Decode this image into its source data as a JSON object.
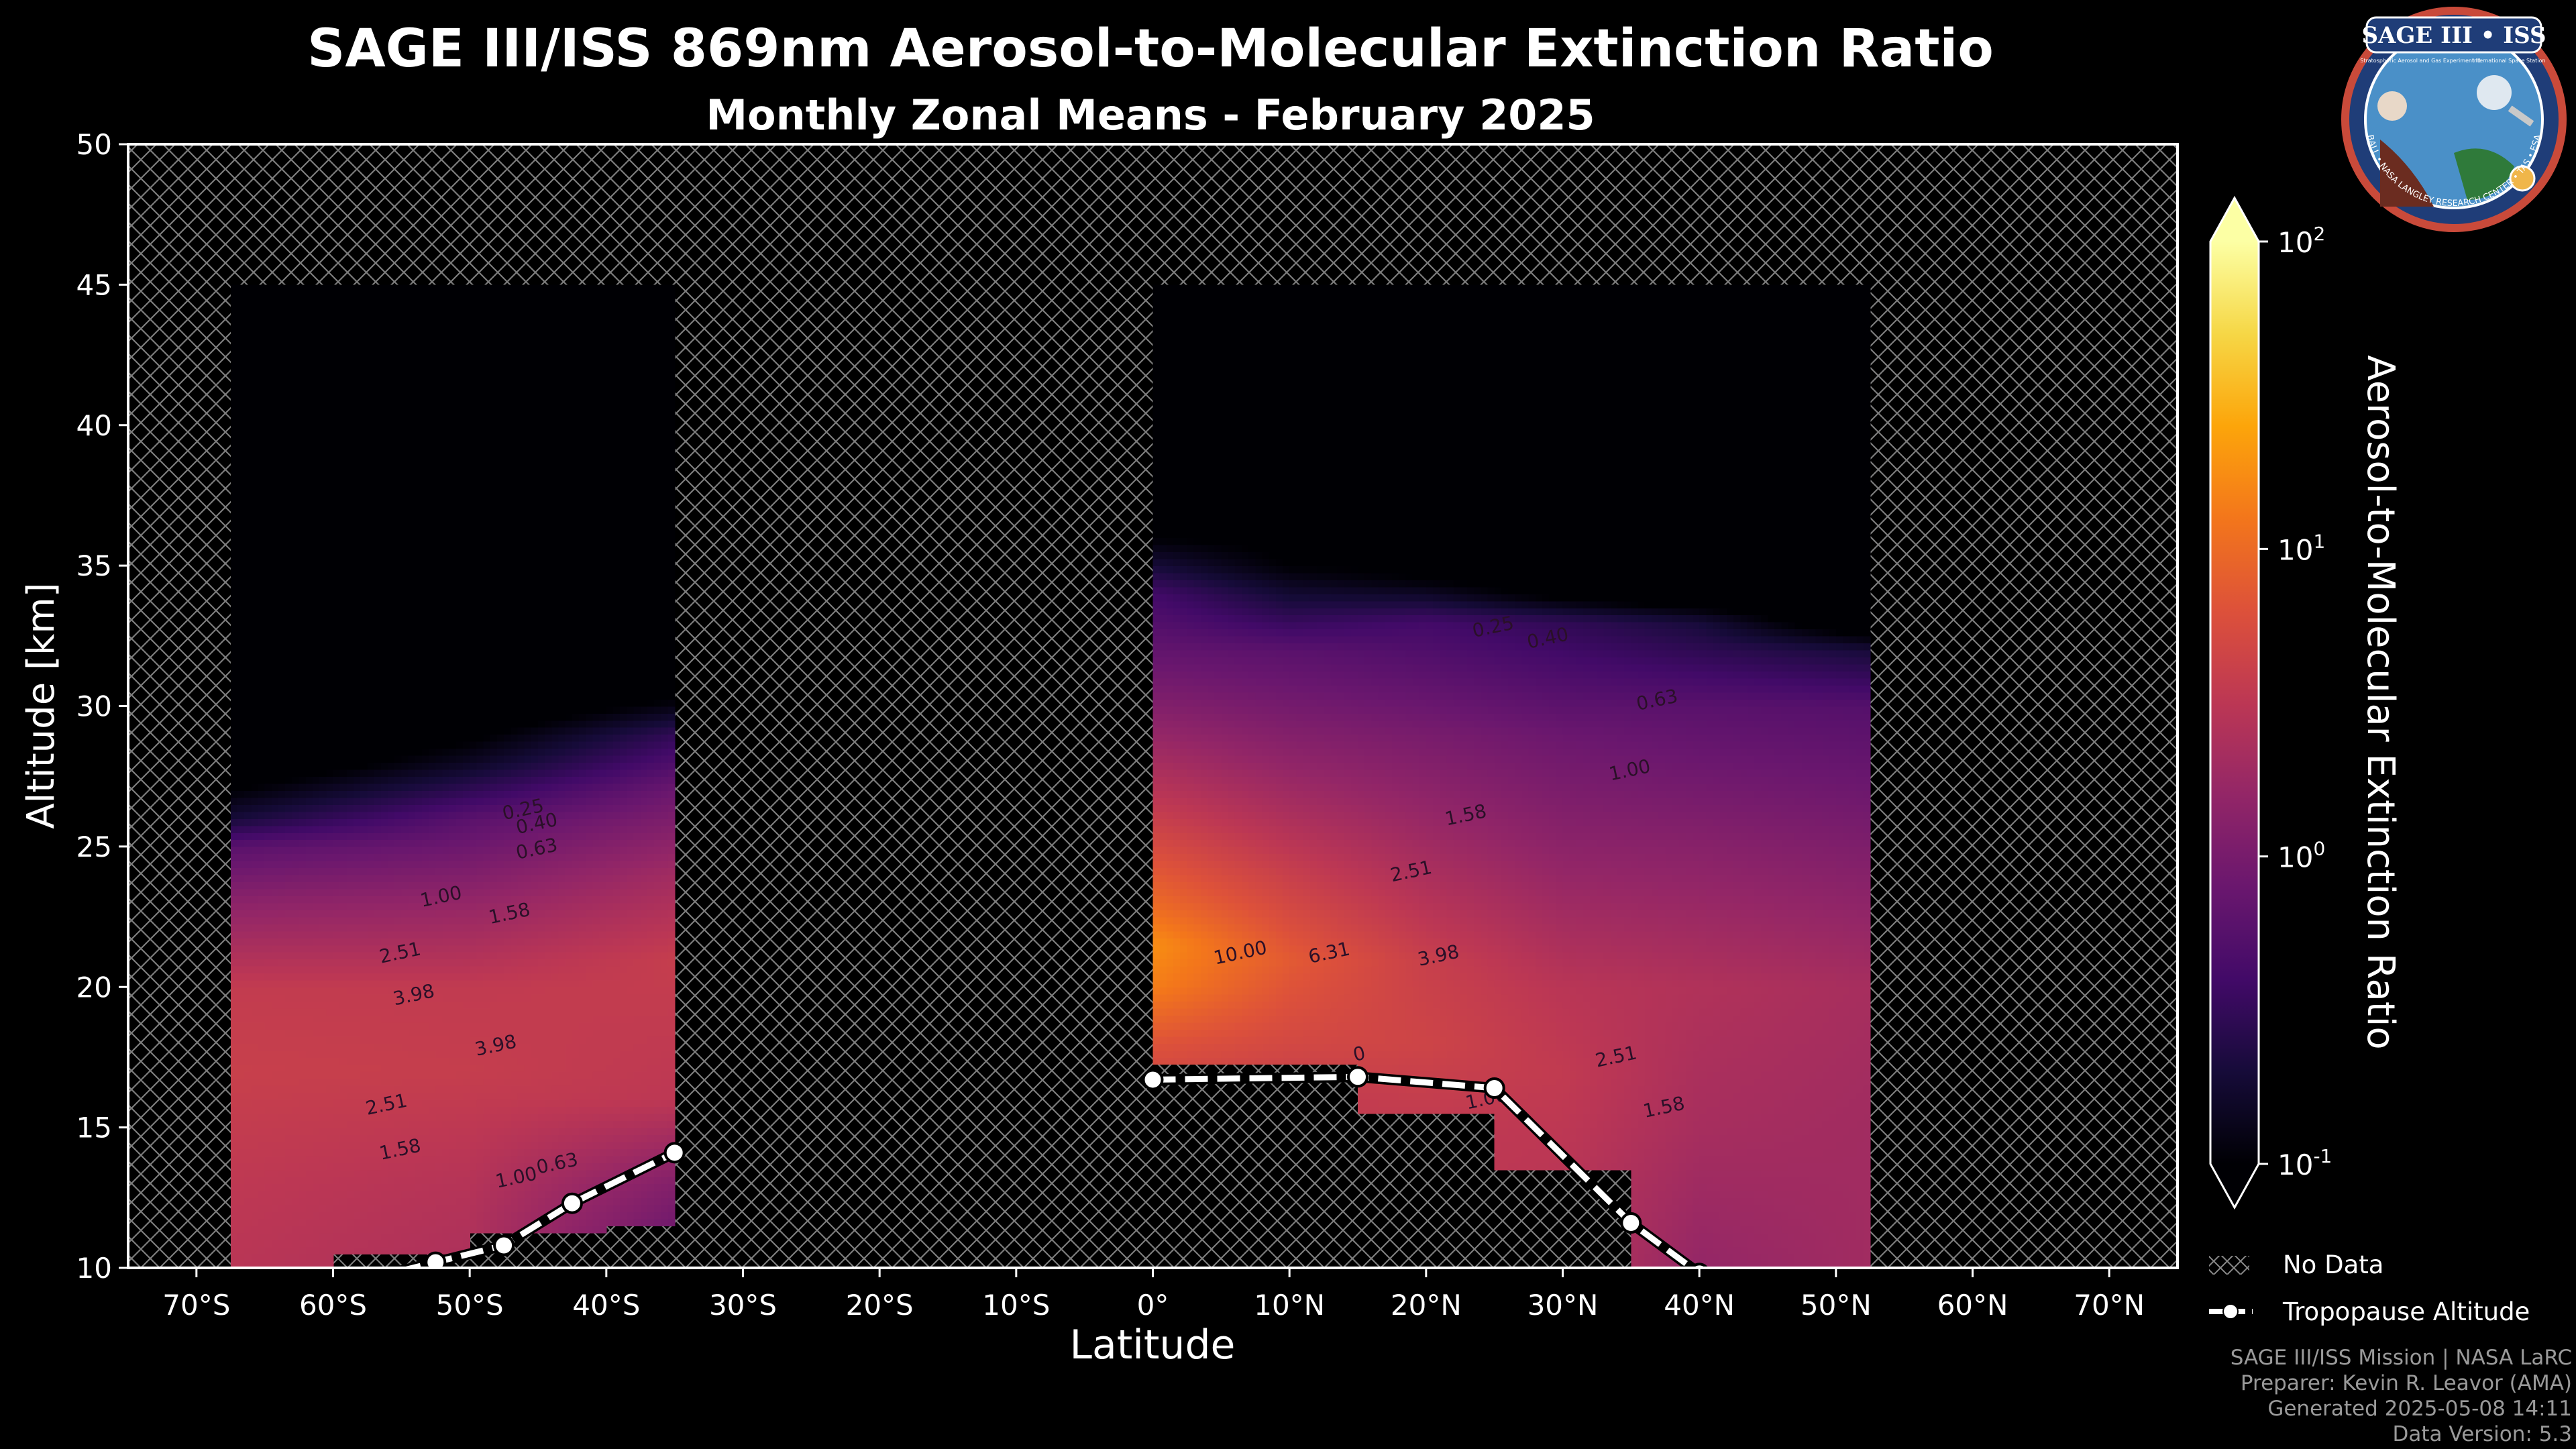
{
  "title": "SAGE III/ISS 869nm Aerosol-to-Molecular Extinction Ratio",
  "subtitle": "Monthly Zonal Means - February 2025",
  "credits": [
    "SAGE III/ISS Mission | NASA LaRC",
    "Preparer: Kevin R. Leavor (AMA)",
    "Generated 2025-05-08 14:11",
    "Data Version: 5.3"
  ],
  "logo": {
    "name": "SAGE III • ISS",
    "ring_text": "BALL • NASA LANGLEY RESEARCH CENTER • TAS • ESA",
    "sub_left": "Stratospheric Aerosol and Gas Experiment III",
    "sub_right": "International Space Station"
  },
  "colors": {
    "background": "#000000",
    "tropopause": "#ffffff",
    "nodata_hatch": "#8a8a8a",
    "colormap": "inferno"
  },
  "chart_data": {
    "type": "heatmap",
    "xlabel": "Latitude",
    "ylabel": "Altitude [km]",
    "xlim": [
      -75,
      75
    ],
    "ylim": [
      10,
      50
    ],
    "x_ticks": [
      -70,
      -60,
      -50,
      -40,
      -30,
      -20,
      -10,
      0,
      10,
      20,
      30,
      40,
      50,
      60,
      70
    ],
    "x_tick_labels": [
      "70°S",
      "60°S",
      "50°S",
      "40°S",
      "30°S",
      "20°S",
      "10°S",
      "0°",
      "10°N",
      "20°N",
      "30°N",
      "40°N",
      "50°N",
      "60°N",
      "70°N"
    ],
    "y_ticks": [
      10,
      15,
      20,
      25,
      30,
      35,
      40,
      45,
      50
    ],
    "y_tick_labels": [
      "10",
      "15",
      "20",
      "25",
      "30",
      "35",
      "40",
      "45",
      "50"
    ],
    "colorbar": {
      "label": "Aerosol-to-Molecular Extinction Ratio",
      "scale": "log",
      "range": [
        0.1,
        100
      ],
      "tick_values": [
        0.1,
        1,
        10,
        100
      ],
      "tick_bases": [
        "10",
        "10",
        "10",
        "10"
      ],
      "tick_exponents": [
        "-1",
        "0",
        "1",
        "2"
      ],
      "extend": "both"
    },
    "data_regions": [
      {
        "name": "southern",
        "lat_range": [
          -67.5,
          -35
        ],
        "alt_range": [
          10,
          45
        ]
      },
      {
        "name": "northern",
        "lat_range": [
          0,
          52.5
        ],
        "alt_range": [
          10,
          45
        ]
      }
    ],
    "field_samples": {
      "southern": {
        "lats": [
          -67.5,
          -50,
          -35
        ],
        "profiles": [
          [
            [
              10,
              3.0
            ],
            [
              13,
              3.3
            ],
            [
              17,
              4.0
            ],
            [
              20,
              3.6
            ],
            [
              23,
              1.4
            ],
            [
              25,
              0.6
            ],
            [
              26,
              0.2
            ],
            [
              28,
              0.05
            ],
            [
              45,
              0.02
            ]
          ],
          [
            [
              10,
              2.4
            ],
            [
              13,
              2.8
            ],
            [
              17,
              3.8
            ],
            [
              20,
              3.5
            ],
            [
              23,
              1.6
            ],
            [
              26,
              0.6
            ],
            [
              28,
              0.15
            ],
            [
              30,
              0.05
            ],
            [
              45,
              0.02
            ]
          ],
          [
            [
              11,
              0.8
            ],
            [
              13,
              1.2
            ],
            [
              16,
              3.2
            ],
            [
              21,
              3.8
            ],
            [
              24,
              2.0
            ],
            [
              27,
              0.8
            ],
            [
              29,
              0.3
            ],
            [
              30.5,
              0.08
            ],
            [
              45,
              0.02
            ]
          ]
        ]
      },
      "northern": {
        "lats": [
          0,
          10,
          20,
          30,
          40,
          52.5
        ],
        "profiles": [
          [
            [
              16,
              4.0
            ],
            [
              18,
              6.5
            ],
            [
              20,
              14
            ],
            [
              21.5,
              18
            ],
            [
              23,
              10
            ],
            [
              26,
              4.0
            ],
            [
              30,
              1.2
            ],
            [
              34,
              0.4
            ],
            [
              36,
              0.1
            ],
            [
              45,
              0.02
            ]
          ],
          [
            [
              16,
              3.6
            ],
            [
              18,
              5.0
            ],
            [
              21,
              7.5
            ],
            [
              24,
              4.0
            ],
            [
              28,
              1.5
            ],
            [
              32,
              0.6
            ],
            [
              35,
              0.1
            ],
            [
              45,
              0.02
            ]
          ],
          [
            [
              15,
              3.4
            ],
            [
              18,
              4.5
            ],
            [
              21,
              4.0
            ],
            [
              25,
              2.0
            ],
            [
              29,
              1.0
            ],
            [
              33,
              0.4
            ],
            [
              34.5,
              0.1
            ],
            [
              45,
              0.02
            ]
          ],
          [
            [
              13,
              3.0
            ],
            [
              17,
              3.5
            ],
            [
              20,
              3.0
            ],
            [
              25,
              1.4
            ],
            [
              29,
              0.8
            ],
            [
              33,
              0.3
            ],
            [
              34,
              0.08
            ],
            [
              45,
              0.02
            ]
          ],
          [
            [
              10,
              1.6
            ],
            [
              15,
              2.2
            ],
            [
              20,
              2.6
            ],
            [
              25,
              1.3
            ],
            [
              30,
              0.6
            ],
            [
              33,
              0.2
            ],
            [
              34,
              0.05
            ],
            [
              45,
              0.02
            ]
          ],
          [
            [
              10,
              2.0
            ],
            [
              15,
              2.0
            ],
            [
              20,
              2.2
            ],
            [
              25,
              1.1
            ],
            [
              30,
              0.55
            ],
            [
              32,
              0.2
            ],
            [
              33,
              0.05
            ],
            [
              45,
              0.02
            ]
          ]
        ]
      }
    },
    "data_floor": [
      {
        "lat_range": [
          -67.5,
          -60
        ],
        "alt": 10
      },
      {
        "lat_range": [
          -60,
          -50
        ],
        "alt": 10.6
      },
      {
        "lat_range": [
          -50,
          -40
        ],
        "alt": 11.2
      },
      {
        "lat_range": [
          -40,
          -35
        ],
        "alt": 11.5
      },
      {
        "lat_range": [
          0,
          15
        ],
        "alt": 17.2
      },
      {
        "lat_range": [
          15,
          25
        ],
        "alt": 15.4
      },
      {
        "lat_range": [
          25,
          35
        ],
        "alt": 13.4
      },
      {
        "lat_range": [
          35,
          52.5
        ],
        "alt": 10
      }
    ],
    "contour_labels": [
      {
        "text": "0.25",
        "lat": -46,
        "alt": 26.1
      },
      {
        "text": "0.40",
        "lat": -45,
        "alt": 25.6
      },
      {
        "text": "0.63",
        "lat": -45,
        "alt": 24.7
      },
      {
        "text": "1.00",
        "lat": -52,
        "alt": 23.0
      },
      {
        "text": "1.58",
        "lat": -47,
        "alt": 22.4
      },
      {
        "text": "2.51",
        "lat": -55,
        "alt": 21.0
      },
      {
        "text": "3.98",
        "lat": -54,
        "alt": 19.5
      },
      {
        "text": "3.98",
        "lat": -48,
        "alt": 17.7
      },
      {
        "text": "2.51",
        "lat": -56,
        "alt": 15.6
      },
      {
        "text": "1.58",
        "lat": -55,
        "alt": 14.0
      },
      {
        "text": "1.00",
        "lat": -46.5,
        "alt": 13.0
      },
      {
        "text": "0.63",
        "lat": -43.5,
        "alt": 13.5
      },
      {
        "text": "10.00",
        "lat": 6.5,
        "alt": 21.0
      },
      {
        "text": "6.31",
        "lat": 13,
        "alt": 21.0
      },
      {
        "text": "3.98",
        "lat": 21,
        "alt": 20.9
      },
      {
        "text": "2.51",
        "lat": 19,
        "alt": 23.9
      },
      {
        "text": "1.58",
        "lat": 23,
        "alt": 25.9
      },
      {
        "text": "1.00",
        "lat": 35,
        "alt": 27.5
      },
      {
        "text": "0.63",
        "lat": 37,
        "alt": 30.0
      },
      {
        "text": "0.25",
        "lat": 25,
        "alt": 32.6
      },
      {
        "text": "0.40",
        "lat": 29,
        "alt": 32.2
      },
      {
        "text": "2.51",
        "lat": 34,
        "alt": 17.3
      },
      {
        "text": "1.58",
        "lat": 37.5,
        "alt": 15.5
      },
      {
        "text": "1.00",
        "lat": 24.5,
        "alt": 15.8
      },
      {
        "text": "0",
        "lat": 15.2,
        "alt": 17.4
      }
    ],
    "series": [
      {
        "name": "Tropopause Altitude",
        "style": "dashed-white-markers",
        "points": [
          [
            -57.5,
            9.6
          ],
          [
            -52.5,
            10.2
          ],
          [
            -47.5,
            10.8
          ],
          [
            -42.5,
            12.3
          ],
          [
            -35,
            14.1
          ]
        ]
      },
      {
        "name": "Tropopause Altitude",
        "style": "dashed-white-markers",
        "points": [
          [
            0,
            16.7
          ],
          [
            15,
            16.8
          ],
          [
            25,
            16.4
          ],
          [
            35,
            11.6
          ],
          [
            40,
            9.8
          ]
        ]
      }
    ],
    "legend": {
      "placement": "lower-right-outside",
      "entries": [
        {
          "label": "No Data",
          "type": "hatch"
        },
        {
          "label": "Tropopause Altitude",
          "type": "dashed-line-marker"
        }
      ]
    }
  }
}
